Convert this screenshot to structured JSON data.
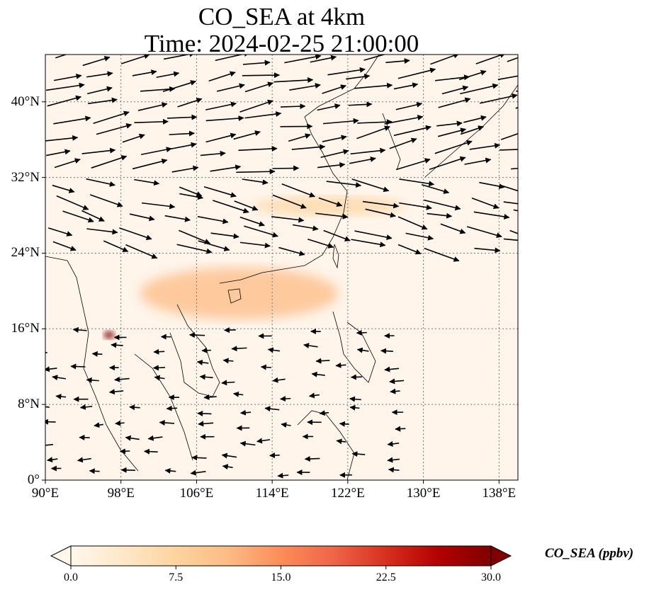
{
  "title": {
    "line1": "CO_SEA at 4km",
    "line2": "Time: 2024-02-25 21:00:00"
  },
  "map": {
    "projection": "PlateCarree",
    "extent": {
      "lon": [
        90,
        140
      ],
      "lat": [
        0,
        45
      ]
    },
    "lon_ticks": [
      90,
      98,
      106,
      114,
      122,
      130,
      138
    ],
    "lat_ticks": [
      0,
      8,
      16,
      24,
      32,
      40
    ],
    "lon_labels": [
      "90°E",
      "98°E",
      "106°E",
      "114°E",
      "122°E",
      "130°E",
      "138°E"
    ],
    "lat_labels": [
      "0°",
      "8°N",
      "16°N",
      "24°N",
      "32°N",
      "40°N"
    ],
    "gridlines": "dotted",
    "background_color": "#fff5eb",
    "coastlines": true
  },
  "plumes": [
    {
      "name": "northern band",
      "lon": [
        112,
        128
      ],
      "lat": [
        28,
        30
      ],
      "level": 9
    },
    {
      "name": "southern arc",
      "lon": [
        100,
        121
      ],
      "lat": [
        17,
        22.5
      ],
      "level": 12
    },
    {
      "name": "myanmar hotspot",
      "lon": [
        96.5,
        97
      ],
      "lat": [
        15.2,
        15.5
      ],
      "level": 30
    }
  ],
  "winds": {
    "units": "arrows",
    "regions": [
      {
        "lat_range": [
          32,
          45
        ],
        "lon_range": [
          90,
          140
        ],
        "dir_deg": 10,
        "strength": "strong"
      },
      {
        "lat_range": [
          24,
          32
        ],
        "lon_range": [
          90,
          140
        ],
        "dir_deg": -15,
        "strength": "strong"
      },
      {
        "lat_range": [
          0,
          16
        ],
        "lon_range": [
          90,
          130
        ],
        "dir_deg": 180,
        "strength": "weak"
      }
    ]
  },
  "colorbar": {
    "label": "CO_SEA (ppbv)",
    "min": 0.0,
    "max": 30.0,
    "ticks": [
      0.0,
      7.5,
      15.0,
      22.5,
      30.0
    ],
    "tick_labels": [
      "0.0",
      "7.5",
      "15.0",
      "22.5",
      "30.0"
    ],
    "extend": "both",
    "colormap": "OrRd",
    "colors": [
      "#fff7ec",
      "#fee8c8",
      "#fdd49e",
      "#fdbb84",
      "#fc8d59",
      "#ef6548",
      "#d7301f",
      "#b30000",
      "#7f0000"
    ]
  }
}
